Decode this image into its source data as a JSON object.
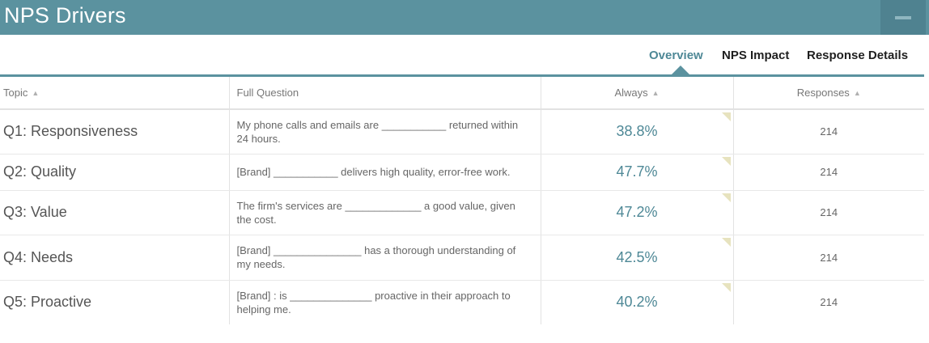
{
  "header": {
    "title": "NPS Drivers"
  },
  "tabs": [
    {
      "label": "Overview",
      "active": true
    },
    {
      "label": "NPS Impact",
      "active": false
    },
    {
      "label": "Response Details",
      "active": false
    }
  ],
  "table": {
    "columns": {
      "topic": "Topic",
      "question": "Full Question",
      "always": "Always",
      "responses": "Responses"
    },
    "rows": [
      {
        "topic": "Q1: Responsiveness",
        "question": "My phone calls and emails are ___________ returned within 24 hours.",
        "always": "38.8%",
        "responses": "214"
      },
      {
        "topic": "Q2: Quality",
        "question": "[Brand]  ___________ delivers high quality, error-free work.",
        "always": "47.7%",
        "responses": "214"
      },
      {
        "topic": "Q3: Value",
        "question": "The firm's services are _____________ a good value, given the cost.",
        "always": "47.2%",
        "responses": "214"
      },
      {
        "topic": "Q4: Needs",
        "question": "[Brand]   _______________ has a thorough understanding of my needs.",
        "always": "42.5%",
        "responses": "214"
      },
      {
        "topic": "Q5: Proactive",
        "question": "[Brand]  : is ______________ proactive in their approach to helping me.",
        "always": "40.2%",
        "responses": "214"
      }
    ]
  },
  "colors": {
    "header_bg": "#5b929f",
    "accent": "#4e8896",
    "corner_marker": "#e7e3bf"
  }
}
